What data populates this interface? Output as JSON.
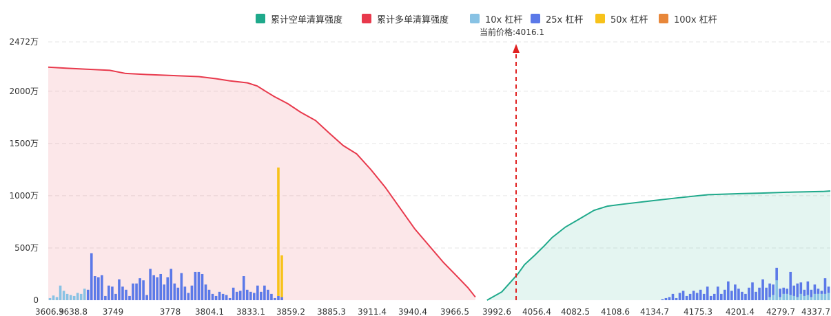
{
  "legend": {
    "short": "累计空单清算强度",
    "long": "累计多单清算强度",
    "lev10": "10x 杠杆",
    "lev25": "25x 杠杆",
    "lev50": "50x 杠杆",
    "lev100": "100x 杠杆"
  },
  "current_price_label": "当前价格:4016.1",
  "colors": {
    "short": "#1fa98b",
    "long": "#e8394c",
    "lev10": "#88c2e4",
    "lev25": "#5b79e8",
    "lev50": "#f7c21a",
    "lev100": "#e8873a"
  },
  "chart_data": {
    "type": "bar",
    "ylim": [
      0,
      2472
    ],
    "yticks": [
      "2472万",
      "2000万",
      "1500万",
      "1000万",
      "500万",
      "0"
    ],
    "ytick_values": [
      2472,
      2000,
      1500,
      1000,
      500,
      0
    ],
    "xticks": [
      "3606.9",
      "3638.8",
      "3749",
      "3778",
      "3804.1",
      "3833.1",
      "3859.2",
      "3885.3",
      "3911.4",
      "3940.4",
      "3966.5",
      "3992.6",
      "4056.4",
      "4082.5",
      "4108.6",
      "4134.7",
      "4175.3",
      "4201.4",
      "4279.7",
      "4337.7"
    ],
    "current_price": 4016.1,
    "bars": {
      "lev10": [
        20,
        45,
        30,
        140,
        90,
        60,
        50,
        40,
        70,
        60,
        110,
        0,
        0,
        0,
        0,
        0,
        0,
        0,
        0,
        0,
        0,
        0,
        0,
        0,
        0,
        0,
        0,
        0,
        0,
        0,
        0,
        0,
        0,
        0,
        0,
        0,
        0,
        0,
        0,
        0,
        0,
        0,
        0,
        0,
        0,
        0,
        0,
        0,
        0,
        0,
        0,
        0,
        0,
        0,
        0,
        0,
        0,
        0,
        0,
        0,
        0,
        0,
        0,
        0,
        0,
        0,
        0,
        0,
        0,
        0,
        0,
        0,
        0,
        0,
        0,
        0,
        0,
        0,
        0,
        0,
        0,
        0,
        0,
        0,
        0,
        0,
        0,
        0,
        0,
        0,
        0,
        0,
        0,
        0,
        0,
        0,
        0,
        0,
        0,
        0,
        0,
        0,
        0,
        0,
        0,
        0,
        0,
        0,
        0,
        0,
        0,
        0,
        0,
        0,
        0,
        0,
        0,
        0,
        0,
        0,
        0,
        0,
        0,
        0,
        0,
        0,
        0,
        0,
        0,
        0,
        0,
        0,
        0,
        0,
        0,
        0,
        0,
        0,
        0,
        0,
        0,
        0,
        0,
        0,
        0,
        0,
        0,
        0,
        0,
        0,
        0,
        0,
        0,
        0,
        0,
        0,
        0,
        0,
        0,
        0,
        0,
        0,
        0,
        0,
        0,
        0,
        0,
        0,
        0,
        0,
        0,
        0,
        0,
        0,
        0,
        0,
        0,
        0,
        0,
        0,
        0,
        0,
        0,
        0,
        0,
        0,
        0,
        0,
        0,
        0,
        0,
        0,
        0,
        0,
        0,
        0,
        0,
        0,
        0,
        0,
        0,
        0,
        0,
        0,
        0,
        0,
        0,
        0,
        30,
        50,
        190,
        30,
        60,
        60,
        50,
        40,
        30,
        60,
        40,
        50,
        30,
        60,
        60,
        60,
        60,
        70
      ],
      "lev25": [
        0,
        0,
        0,
        0,
        0,
        0,
        0,
        0,
        0,
        0,
        0,
        100,
        450,
        230,
        220,
        240,
        40,
        140,
        130,
        60,
        200,
        130,
        100,
        40,
        160,
        160,
        210,
        190,
        50,
        300,
        240,
        220,
        250,
        150,
        220,
        300,
        160,
        120,
        260,
        130,
        70,
        140,
        270,
        270,
        250,
        150,
        100,
        60,
        40,
        80,
        60,
        50,
        20,
        120,
        80,
        90,
        230,
        100,
        80,
        70,
        140,
        80,
        140,
        100,
        60,
        20,
        40,
        30,
        0,
        0,
        0,
        0,
        0,
        0,
        0,
        0,
        0,
        0,
        0,
        0,
        0,
        0,
        0,
        0,
        0,
        0,
        0,
        0,
        0,
        0,
        0,
        0,
        0,
        0,
        0,
        0,
        0,
        0,
        0,
        0,
        0,
        0,
        0,
        0,
        0,
        0,
        0,
        0,
        0,
        0,
        0,
        0,
        0,
        0,
        0,
        0,
        0,
        0,
        0,
        0,
        0,
        0,
        0,
        0,
        0,
        0,
        0,
        0,
        0,
        0,
        0,
        0,
        0,
        0,
        0,
        0,
        0,
        0,
        0,
        0,
        0,
        0,
        0,
        0,
        0,
        0,
        0,
        0,
        0,
        0,
        0,
        0,
        0,
        0,
        0,
        0,
        0,
        0,
        0,
        0,
        0,
        0,
        0,
        0,
        0,
        0,
        0,
        0,
        0,
        0,
        0,
        0,
        0,
        0,
        0,
        0,
        0,
        10,
        20,
        30,
        60,
        20,
        70,
        90,
        40,
        60,
        90,
        70,
        100,
        60,
        130,
        40,
        60,
        130,
        60,
        100,
        180,
        90,
        150,
        110,
        80,
        60,
        120,
        170,
        80,
        120,
        200,
        120,
        130,
        100,
        120,
        80,
        60,
        50,
        220,
        100,
        130,
        110,
        60,
        130,
        70,
        90,
        50,
        30,
        150,
        60,
        100,
        40,
        60,
        70,
        40,
        130,
        60,
        90,
        60,
        80,
        100,
        80,
        50,
        70,
        130,
        40,
        110,
        70,
        80,
        240,
        60,
        40,
        90,
        50,
        120,
        30,
        30,
        130,
        70,
        120,
        90,
        180,
        240,
        240,
        150,
        400,
        60,
        90,
        40,
        60,
        160,
        60,
        90,
        150,
        60,
        70,
        190,
        120,
        20,
        60,
        50
      ],
      "lev50": [
        0,
        0,
        0,
        0,
        0,
        0,
        0,
        0,
        0,
        0,
        0,
        0,
        0,
        0,
        0,
        0,
        0,
        0,
        0,
        0,
        0,
        0,
        0,
        0,
        0,
        0,
        0,
        0,
        0,
        0,
        0,
        0,
        0,
        0,
        0,
        0,
        0,
        0,
        0,
        0,
        0,
        0,
        0,
        0,
        0,
        0,
        0,
        0,
        0,
        0,
        0,
        0,
        0,
        0,
        0,
        0,
        0,
        0,
        0,
        0,
        0,
        0,
        0,
        0,
        0,
        0,
        1230,
        400,
        0,
        0,
        0,
        0,
        0,
        0,
        0,
        0,
        0,
        0,
        0,
        0,
        0,
        0,
        0,
        0,
        0,
        0,
        0,
        0,
        0,
        0,
        0,
        0,
        0,
        0,
        0,
        0,
        0,
        0,
        0,
        0,
        0,
        0,
        0,
        0,
        0,
        0,
        0,
        0,
        0,
        0,
        0,
        0,
        0,
        0,
        0,
        0,
        0,
        0,
        0,
        0,
        0,
        0,
        0,
        0,
        0,
        0,
        0,
        0,
        0,
        0,
        0,
        0,
        0,
        0,
        0,
        0,
        0,
        0,
        0,
        0,
        0,
        0,
        0,
        0,
        0,
        0,
        0,
        0,
        0,
        0,
        0,
        0,
        0,
        0,
        0,
        0,
        0,
        0,
        0,
        0,
        0,
        0,
        0,
        0,
        0,
        0,
        0,
        0,
        0,
        0,
        0,
        0,
        0,
        0,
        0,
        0,
        0,
        0,
        0,
        0,
        0,
        0,
        0,
        0,
        0,
        0,
        0,
        0,
        0,
        0,
        0,
        0,
        0,
        0,
        0,
        0,
        0,
        0,
        0,
        0,
        0,
        0,
        0,
        0,
        0,
        0,
        0,
        0,
        0,
        0,
        0,
        0,
        0,
        0,
        0,
        0,
        0,
        0,
        0,
        0,
        0,
        0,
        0,
        0,
        0,
        0,
        0,
        0,
        0,
        0,
        0,
        0,
        0,
        0,
        0,
        0,
        0,
        0,
        0,
        0,
        0,
        0,
        0,
        0,
        0,
        0,
        0,
        0,
        0,
        0,
        0,
        0,
        0,
        0,
        0,
        0,
        0,
        0,
        0,
        0,
        0,
        0,
        0,
        0,
        0,
        0,
        0,
        0,
        0,
        0,
        0,
        0,
        0,
        0,
        0,
        0,
        0,
        0,
        0,
        0,
        0,
        0,
        0,
        0,
        0,
        0,
        0,
        0,
        0,
        0,
        0,
        0,
        0,
        0,
        0,
        0,
        0,
        0,
        0,
        0,
        0,
        0,
        0,
        0,
        0,
        0,
        0,
        0,
        0,
        0,
        0,
        0,
        0,
        0,
        0,
        0
      ],
      "lev100": [
        0,
        0,
        0,
        0,
        0,
        0,
        0,
        0,
        0,
        0,
        0,
        0,
        0,
        0,
        0,
        0,
        0,
        0,
        0,
        0,
        0,
        0,
        0,
        0,
        0,
        0,
        0,
        0,
        0,
        0,
        0,
        0,
        0,
        0,
        0,
        0,
        0,
        0,
        0,
        0,
        0,
        0,
        0,
        0,
        0,
        0,
        0,
        0,
        0,
        0,
        0,
        0,
        0,
        0,
        0,
        0,
        0,
        0,
        0,
        0,
        0,
        0,
        0,
        0,
        0,
        0,
        0,
        0,
        0,
        0,
        0,
        0,
        0,
        0,
        0,
        0,
        0,
        0,
        0,
        0,
        0,
        0,
        0,
        0,
        0,
        0,
        0,
        0,
        0,
        0,
        0,
        0,
        0,
        0,
        0,
        0,
        0,
        0,
        0,
        0,
        0,
        0,
        0,
        0,
        0,
        0,
        0,
        0,
        0,
        0,
        0,
        0,
        0,
        0,
        0,
        0,
        0,
        0,
        0,
        0,
        0,
        0,
        0,
        0,
        0,
        0,
        0,
        0,
        0,
        0,
        0,
        0,
        0,
        0,
        0,
        0,
        0,
        0,
        0,
        0,
        0,
        0,
        0,
        0,
        0,
        0,
        0,
        0,
        0,
        0,
        0,
        0,
        0,
        0,
        0,
        0,
        0,
        0,
        0,
        0,
        0,
        0,
        0,
        0,
        0,
        0,
        0,
        0,
        0,
        0,
        0,
        0,
        0,
        0,
        0,
        0,
        0,
        0,
        0,
        0,
        0,
        0,
        0,
        0,
        0,
        0,
        0,
        0,
        0,
        0,
        0,
        0,
        0,
        0,
        0,
        0,
        0,
        0,
        0,
        0,
        0,
        0,
        0,
        0,
        0,
        0,
        0,
        0,
        0,
        0,
        0,
        0,
        0,
        0,
        0,
        0,
        0,
        0,
        0,
        0,
        0,
        0,
        0,
        0,
        0,
        0,
        0,
        0,
        0,
        0,
        0,
        0,
        0,
        0,
        0,
        0,
        0,
        0,
        0,
        0,
        0,
        0,
        0,
        0,
        0,
        0,
        0,
        0,
        0,
        0,
        0,
        0,
        0,
        0,
        0,
        0,
        0,
        0,
        0,
        0,
        0,
        0,
        0,
        0,
        0,
        0,
        0,
        0,
        0,
        0,
        0,
        0,
        0,
        0,
        0,
        0,
        0,
        0,
        0,
        0,
        0,
        0,
        0,
        0,
        0,
        0,
        0,
        0,
        0,
        0,
        0,
        0,
        0,
        0,
        0,
        0,
        0,
        0,
        0,
        0,
        0,
        0,
        0,
        0,
        0,
        0,
        0,
        0
      ]
    },
    "cum_long": [
      [
        3606.9,
        2230
      ],
      [
        3625,
        2220
      ],
      [
        3645,
        2210
      ],
      [
        3665,
        2200
      ],
      [
        3680,
        2170
      ],
      [
        3700,
        2160
      ],
      [
        3725,
        2150
      ],
      [
        3749,
        2140
      ],
      [
        3765,
        2120
      ],
      [
        3778,
        2100
      ],
      [
        3795,
        2080
      ],
      [
        3804.1,
        2050
      ],
      [
        3812,
        2000
      ],
      [
        3820,
        1950
      ],
      [
        3833.1,
        1880
      ],
      [
        3845,
        1800
      ],
      [
        3852,
        1760
      ],
      [
        3859.2,
        1720
      ],
      [
        3872,
        1600
      ],
      [
        3885.3,
        1480
      ],
      [
        3898,
        1400
      ],
      [
        3911.4,
        1250
      ],
      [
        3925,
        1080
      ],
      [
        3940.4,
        860
      ],
      [
        3953,
        680
      ],
      [
        3966.5,
        520
      ],
      [
        3980,
        360
      ],
      [
        3992.6,
        230
      ],
      [
        4003,
        120
      ],
      [
        4010,
        30
      ]
    ],
    "cum_short": [
      [
        4021,
        0
      ],
      [
        4035,
        80
      ],
      [
        4050,
        250
      ],
      [
        4056.4,
        340
      ],
      [
        4066,
        430
      ],
      [
        4075,
        520
      ],
      [
        4082.5,
        600
      ],
      [
        4095,
        700
      ],
      [
        4108.6,
        780
      ],
      [
        4122,
        860
      ],
      [
        4134.7,
        900
      ],
      [
        4150,
        920
      ],
      [
        4175.3,
        950
      ],
      [
        4201.4,
        980
      ],
      [
        4230,
        1010
      ],
      [
        4260,
        1020
      ],
      [
        4279.7,
        1025
      ],
      [
        4310,
        1035
      ],
      [
        4337.7,
        1040
      ],
      [
        4345,
        1045
      ]
    ]
  }
}
